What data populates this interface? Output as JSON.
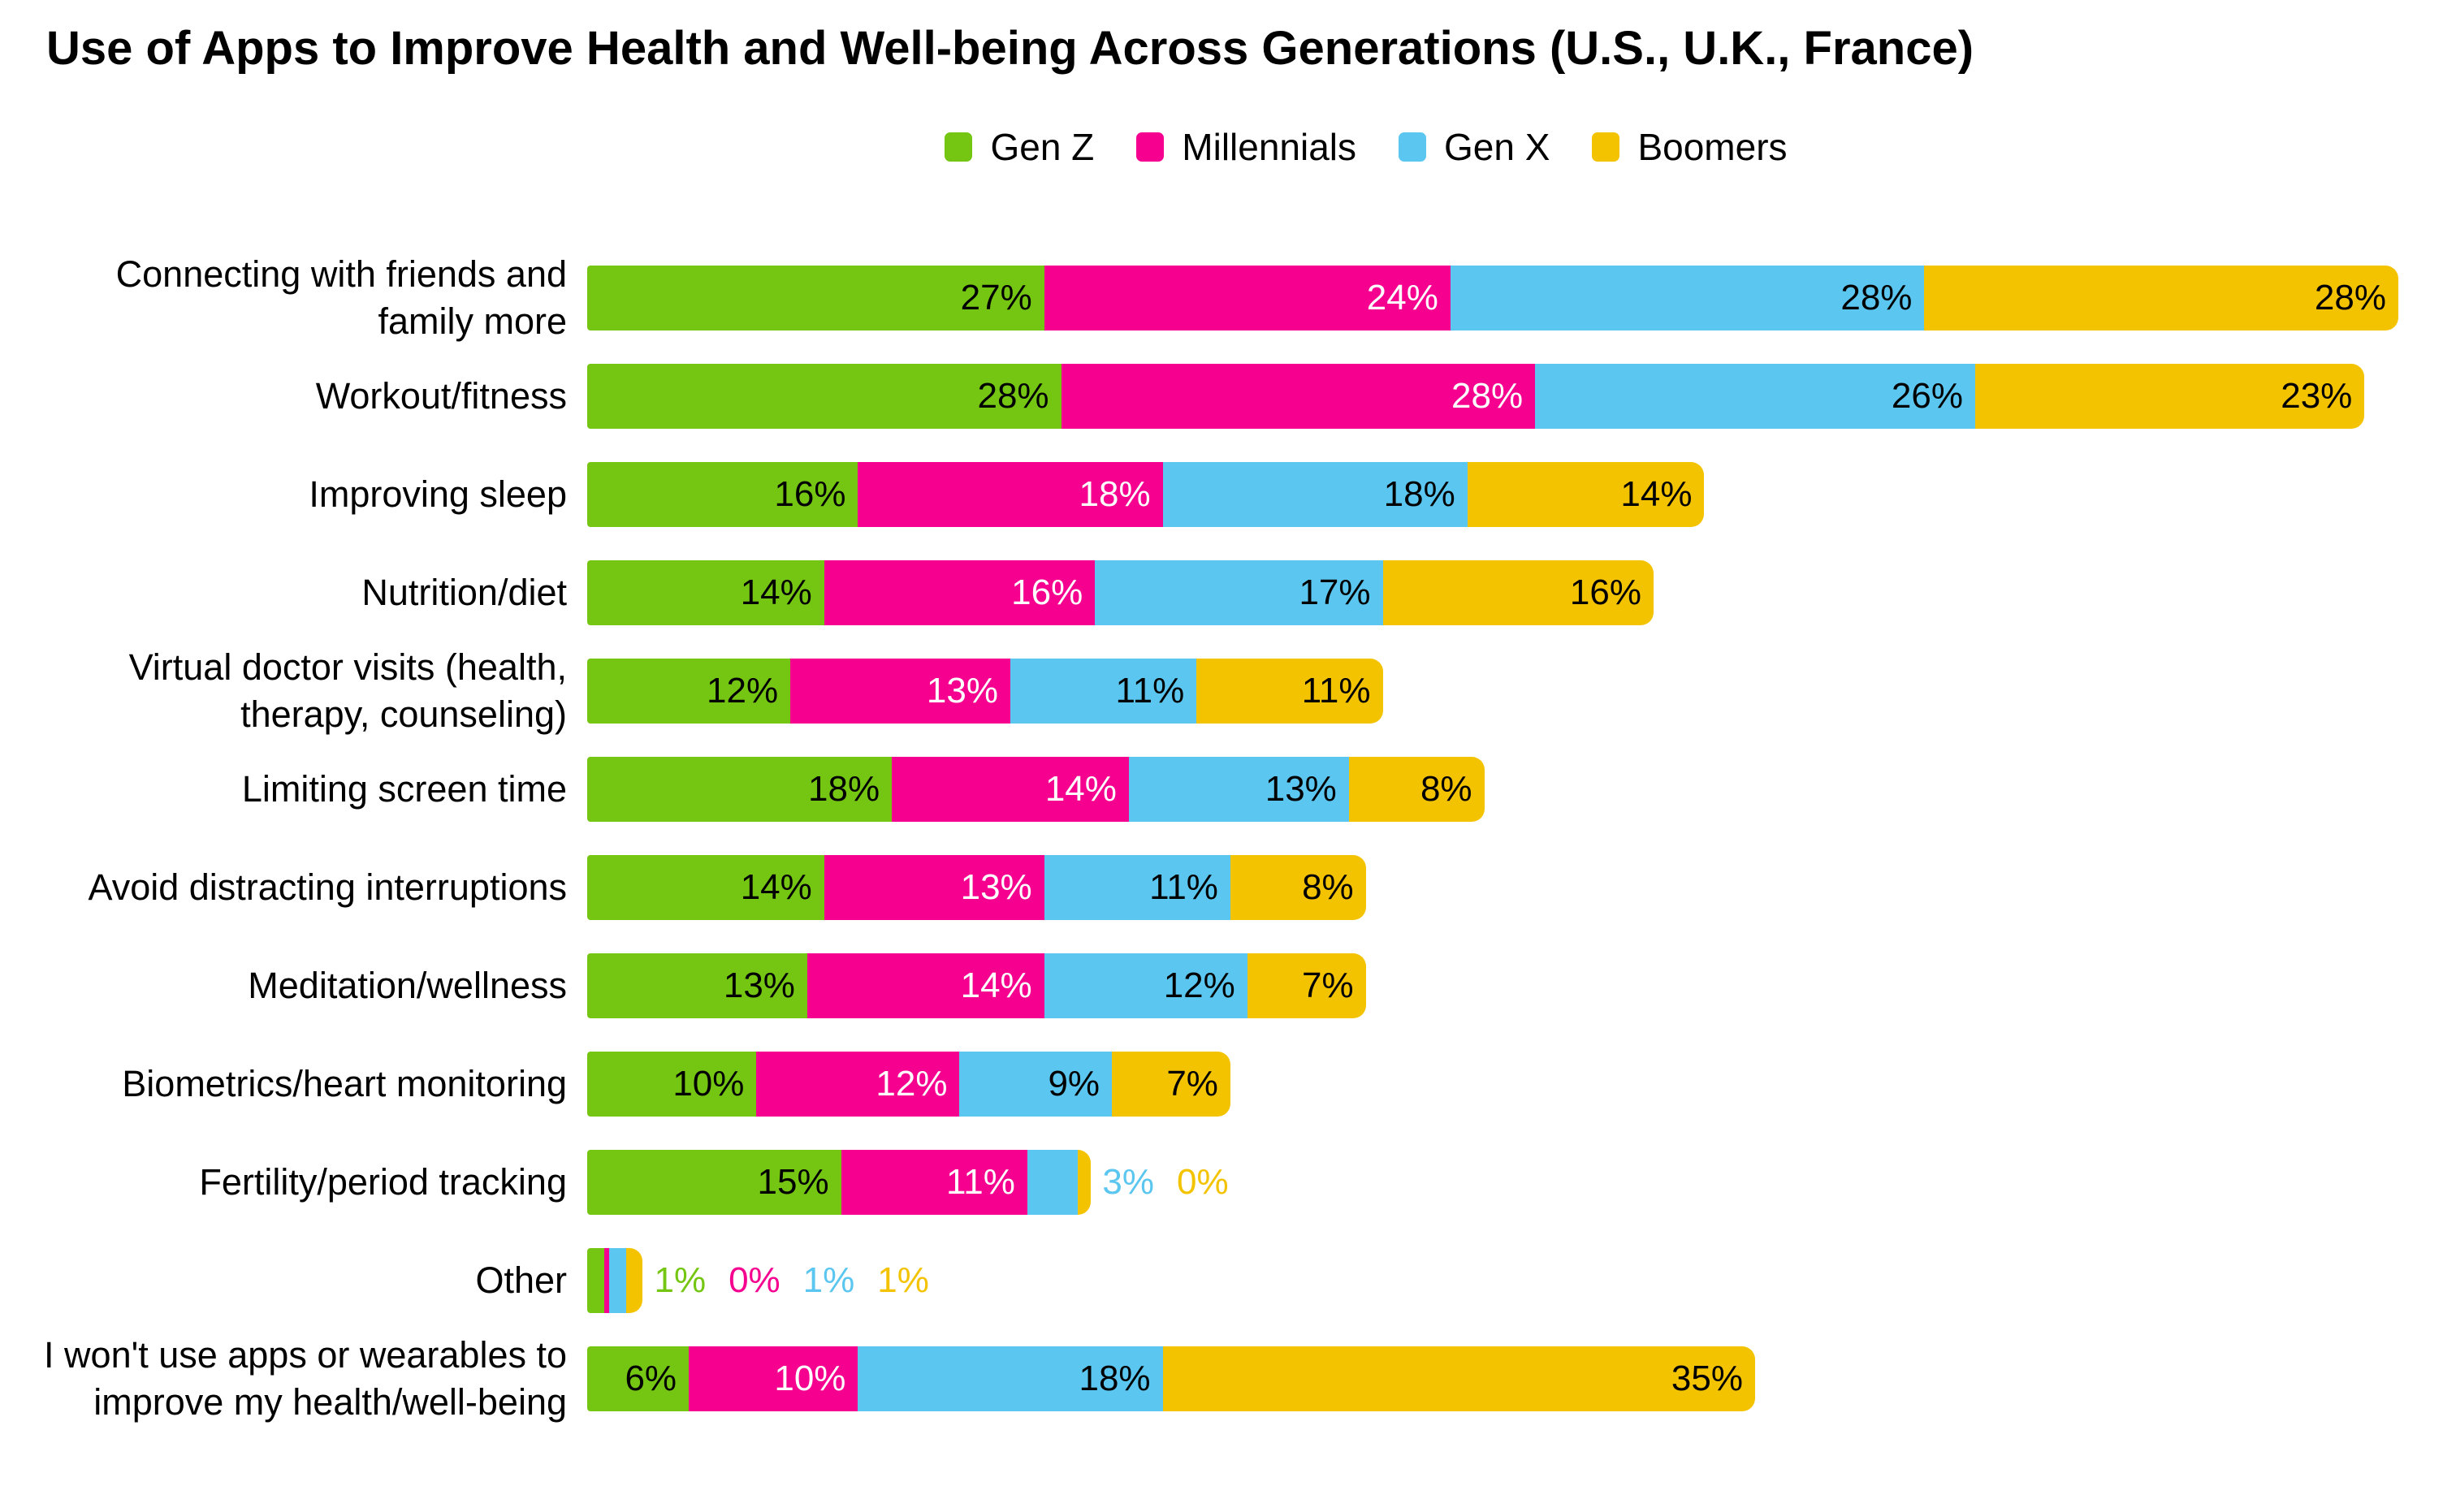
{
  "chart_data": {
    "type": "bar",
    "stacked": true,
    "orientation": "horizontal",
    "title": "Use of Apps to Improve Health and Well-being Across Generations (U.S., U.K., France)",
    "legend_position": "top",
    "grid": false,
    "axis_max_percent": 107,
    "inside_label_min_percent": 5,
    "value_suffix": "%",
    "categories": [
      "Connecting with friends and family more",
      "Workout/fitness",
      "Improving sleep",
      "Nutrition/diet",
      "Virtual doctor visits (health, therapy, counseling)",
      "Limiting screen time",
      "Avoid distracting interruptions",
      "Meditation/wellness",
      "Biometrics/heart monitoring",
      "Fertility/period tracking",
      "Other",
      "I won't use apps or wearables to improve my health/well-being"
    ],
    "category_label_lines": [
      [
        "Connecting with friends and",
        "family more"
      ],
      [
        "Workout/fitness"
      ],
      [
        "Improving sleep"
      ],
      [
        "Nutrition/diet"
      ],
      [
        "Virtual doctor visits (health,",
        "therapy, counseling)"
      ],
      [
        "Limiting screen time"
      ],
      [
        "Avoid distracting interruptions"
      ],
      [
        "Meditation/wellness"
      ],
      [
        "Biometrics/heart monitoring"
      ],
      [
        "Fertility/period tracking"
      ],
      [
        "Other"
      ],
      [
        "I won't use apps or wearables to",
        "improve my health/well-being"
      ]
    ],
    "series": [
      {
        "name": "Gen Z",
        "color": "#75C612",
        "inside_label_color": "#000000",
        "values": [
          27,
          28,
          16,
          14,
          12,
          18,
          14,
          13,
          10,
          15,
          1,
          6
        ]
      },
      {
        "name": "Millennials",
        "color": "#F5008F",
        "inside_label_color": "#FFFFFF",
        "values": [
          24,
          28,
          18,
          16,
          13,
          14,
          13,
          14,
          12,
          11,
          0,
          10
        ]
      },
      {
        "name": "Gen X",
        "color": "#5BC6EF",
        "inside_label_color": "#000000",
        "values": [
          28,
          26,
          18,
          17,
          11,
          13,
          11,
          12,
          9,
          3,
          1,
          18
        ]
      },
      {
        "name": "Boomers",
        "color": "#F4C300",
        "inside_label_color": "#000000",
        "values": [
          28,
          23,
          14,
          16,
          11,
          8,
          8,
          7,
          7,
          0,
          1,
          35
        ]
      }
    ]
  }
}
